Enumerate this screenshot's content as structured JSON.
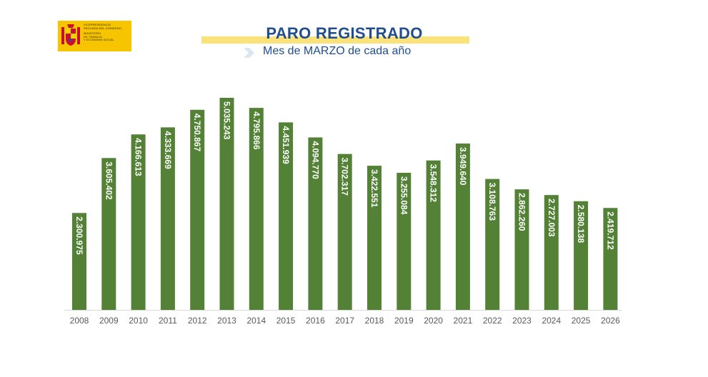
{
  "logo": {
    "lines_group1": [
      "VICEPRESIDENCIA",
      "SEGUNDA DEL GOBIERNO"
    ],
    "lines_group2": [
      "MINISTERIO",
      "DE TRABAJO",
      "Y ECONOMÍA SOCIAL"
    ]
  },
  "colors": {
    "bar": "#538135",
    "title": "#214e8f",
    "title_band": "#fbe27a",
    "logo_bg": "#f6c500"
  },
  "chart_data": {
    "type": "bar",
    "title": "PARO REGISTRADO",
    "subtitle": "Mes de MARZO de cada año",
    "categories": [
      "2008",
      "2009",
      "2010",
      "2011",
      "2012",
      "2013",
      "2014",
      "2015",
      "2016",
      "2017",
      "2018",
      "2019",
      "2020",
      "2021",
      "2022",
      "2023",
      "2024",
      "2025",
      "2026"
    ],
    "values": [
      2300975,
      3605402,
      4166613,
      4333669,
      4750867,
      5035243,
      4795866,
      4451939,
      4094770,
      3702317,
      3422551,
      3255084,
      3548312,
      3949640,
      3108763,
      2862260,
      2727003,
      2580138,
      2419712
    ],
    "labels": [
      "2.300.975",
      "3.605.402",
      "4.166.613",
      "4.333.669",
      "4.750.867",
      "5.035.243",
      "4.795.866",
      "4.451.939",
      "4.094.770",
      "3.702.317",
      "3.422.551",
      "3.255.084",
      "3.548.312",
      "3.949.640",
      "3.108.763",
      "2.862.260",
      "2.727.003",
      "2.580.138",
      "2.419.712"
    ],
    "ylim": [
      0,
      5035243
    ],
    "grid": false,
    "legend": "none"
  }
}
